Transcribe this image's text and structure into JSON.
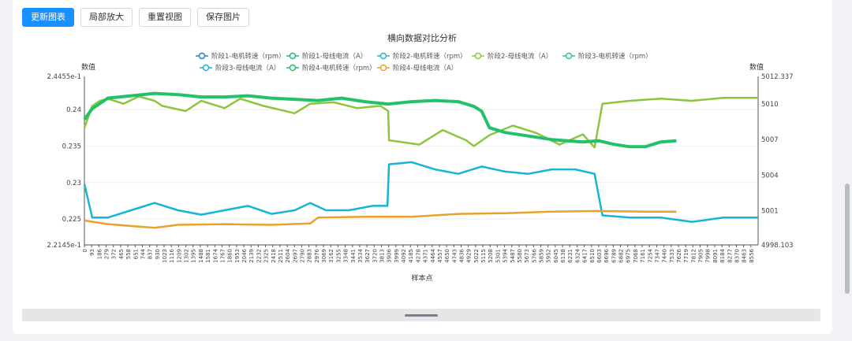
{
  "toolbar": {
    "buttons": [
      "更新图表",
      "局部放大",
      "重置视图",
      "保存图片"
    ]
  },
  "chart_data": {
    "type": "line",
    "title": "横向数据对比分析",
    "xlabel": "样本点",
    "ylabel_left": "数值",
    "ylabel_right": "数值",
    "legend_placement": "top-center",
    "grid": true,
    "x_range": [
      0,
      8649
    ],
    "x_ticks": [
      "0",
      "93",
      "186",
      "279",
      "372",
      "465",
      "558",
      "651",
      "744",
      "837",
      "930",
      "1023",
      "1116",
      "1209",
      "1302",
      "1395",
      "1488",
      "1581",
      "1674",
      "1767",
      "1860",
      "1953",
      "2046",
      "2139",
      "2232",
      "2325",
      "2418",
      "2511",
      "2604",
      "2697",
      "2790",
      "2883",
      "2976",
      "3069",
      "3162",
      "3255",
      "3348",
      "3441",
      "3534",
      "3627",
      "3720",
      "3813",
      "3906",
      "3999",
      "4092",
      "4185",
      "4278",
      "4371",
      "4464",
      "4557",
      "4650",
      "4743",
      "4836",
      "4929",
      "5022",
      "5115",
      "5208",
      "5301",
      "5394",
      "5487",
      "5580",
      "5673",
      "5766",
      "5859",
      "5952",
      "6045",
      "6138",
      "6231",
      "6324",
      "6417",
      "6510",
      "6603",
      "6696",
      "6789",
      "6882",
      "6975",
      "7068",
      "7161",
      "7254",
      "7347",
      "7440",
      "7533",
      "7626",
      "7719",
      "7812",
      "7905",
      "7998",
      "8091",
      "8184",
      "8277",
      "8370",
      "8463",
      "8556"
    ],
    "left_axis": {
      "min": 0.22145,
      "max": 0.24455,
      "ticks": [
        0.22145,
        0.225,
        0.23,
        0.235,
        0.24,
        0.24455
      ],
      "tick_labels": [
        "2.2145e-1",
        "0.225",
        "0.23",
        "0.235",
        "0.24",
        "2.4455e-1"
      ]
    },
    "right_axis": {
      "min": 4998.103,
      "max": 5012.337,
      "ticks": [
        4998.103,
        5001,
        5004,
        5007,
        5010,
        5012.337
      ],
      "tick_labels": [
        "4998.103",
        "5001",
        "5004",
        "5007",
        "5010",
        "5012.337"
      ]
    },
    "series": [
      {
        "name": "阶段1-电机转速（rpm）",
        "color": "#1c7fd1",
        "axis": "right",
        "x": [],
        "values": []
      },
      {
        "name": "阶段1-母线电流（A）",
        "color": "#23b38a",
        "axis": "left",
        "x": [],
        "values": []
      },
      {
        "name": "阶段2-电机转速（rpm）",
        "color": "#1bb8c9",
        "axis": "right",
        "x": [],
        "values": []
      },
      {
        "name": "阶段2-母线电流（A）",
        "color": "#8cc63f",
        "axis": "left",
        "x": [
          0,
          100,
          200,
          300,
          500,
          700,
          900,
          1000,
          1300,
          1500,
          1800,
          2000,
          2300,
          2700,
          2900,
          3200,
          3500,
          3800,
          3900,
          3910,
          4300,
          4600,
          4900,
          5000,
          5200,
          5500,
          5800,
          6100,
          6400,
          6550,
          6650,
          7000,
          7400,
          7800,
          8200,
          8649
        ],
        "values": [
          0.2375,
          0.2405,
          0.2412,
          0.2415,
          0.2408,
          0.2418,
          0.2412,
          0.2405,
          0.2398,
          0.2412,
          0.2402,
          0.2415,
          0.2405,
          0.2395,
          0.2408,
          0.241,
          0.2402,
          0.2405,
          0.2398,
          0.2358,
          0.2352,
          0.2372,
          0.2358,
          0.235,
          0.2365,
          0.2378,
          0.2368,
          0.2352,
          0.2366,
          0.2348,
          0.2408,
          0.2412,
          0.2415,
          0.2412,
          0.2416,
          0.2416
        ]
      },
      {
        "name": "阶段3-电机转速（rpm）",
        "color": "#2bc48a",
        "axis": "right",
        "x": [],
        "values": []
      },
      {
        "name": "阶段3-母线电流（A）",
        "color": "#16b4d6",
        "axis": "left",
        "x": [
          0,
          100,
          300,
          600,
          900,
          1200,
          1500,
          1800,
          2100,
          2400,
          2700,
          2900,
          3100,
          3400,
          3700,
          3890,
          3910,
          4200,
          4500,
          4800,
          5100,
          5400,
          5700,
          6000,
          6300,
          6550,
          6650,
          7000,
          7400,
          7800,
          8200,
          8649
        ],
        "values": [
          0.2298,
          0.2252,
          0.2252,
          0.2262,
          0.2272,
          0.2262,
          0.2256,
          0.2262,
          0.2268,
          0.2257,
          0.2262,
          0.2272,
          0.2262,
          0.2262,
          0.2268,
          0.2268,
          0.2325,
          0.2328,
          0.2318,
          0.2312,
          0.2322,
          0.2315,
          0.2312,
          0.2318,
          0.2318,
          0.2312,
          0.2255,
          0.2252,
          0.2252,
          0.2246,
          0.2252,
          0.2252
        ]
      },
      {
        "name": "阶段4-电机转速（rpm）",
        "color": "#22c16a",
        "axis": "right",
        "x": [
          0,
          100,
          300,
          600,
          900,
          1200,
          1500,
          1800,
          2100,
          2400,
          2700,
          3000,
          3300,
          3600,
          3900,
          4200,
          4500,
          4800,
          5000,
          5100,
          5200,
          5400,
          5600,
          5800,
          6000,
          6200,
          6400,
          6600,
          6800,
          7000,
          7200,
          7400,
          7600
        ],
        "values": [
          5008.7,
          5009.6,
          5010.5,
          5010.7,
          5010.9,
          5010.8,
          5010.6,
          5010.6,
          5010.7,
          5010.5,
          5010.4,
          5010.3,
          5010.5,
          5010.2,
          5010.0,
          5010.2,
          5010.3,
          5010.2,
          5009.8,
          5009.4,
          5008.0,
          5007.6,
          5007.4,
          5007.2,
          5007.0,
          5006.9,
          5006.8,
          5006.9,
          5006.6,
          5006.4,
          5006.4,
          5006.8,
          5006.9
        ]
      },
      {
        "name": "阶段4-母线电流（A）",
        "color": "#e9a12b",
        "axis": "left",
        "x": [
          0,
          300,
          900,
          1200,
          1800,
          2400,
          2900,
          3000,
          3600,
          4200,
          4800,
          5400,
          6000,
          6600,
          7200,
          7600
        ],
        "values": [
          0.2248,
          0.2243,
          0.2238,
          0.2242,
          0.2243,
          0.2242,
          0.2244,
          0.2252,
          0.2253,
          0.2253,
          0.2257,
          0.2258,
          0.226,
          0.2261,
          0.226,
          0.226
        ]
      }
    ]
  }
}
